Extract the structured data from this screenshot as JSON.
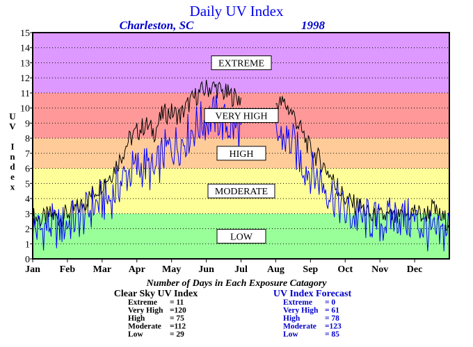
{
  "header": {
    "title": "Daily UV Index",
    "location": "Charleston, SC",
    "year": "1998"
  },
  "chart_data": {
    "type": "line",
    "title": "Daily UV Index",
    "subtitle": "Charleston, SC",
    "year": "1998",
    "ylabel": "UV Index",
    "ylim": [
      0,
      15
    ],
    "y_ticks": [
      "0",
      "1",
      "2",
      "3",
      "4",
      "5",
      "6",
      "7",
      "8",
      "9",
      "10",
      "11",
      "12",
      "13",
      "14",
      "15"
    ],
    "x_ticks": [
      "Jan",
      "Feb",
      "Mar",
      "Apr",
      "May",
      "Jun",
      "Jul",
      "Aug",
      "Sep",
      "Oct",
      "Nov",
      "Dec"
    ],
    "x_unit": "month",
    "grid": "horizontal dotted",
    "bands": [
      {
        "label": "LOW",
        "from": 0,
        "to": 3,
        "color": "#99ff99"
      },
      {
        "label": "MODERATE",
        "from": 3,
        "to": 6,
        "color": "#ffff99"
      },
      {
        "label": "HIGH",
        "from": 6,
        "to": 8,
        "color": "#ffcc99"
      },
      {
        "label": "VERY HIGH",
        "from": 8,
        "to": 11,
        "color": "#ff9999"
      },
      {
        "label": "EXTREME",
        "from": 11,
        "to": 15,
        "color": "#dd99ff"
      }
    ],
    "series": [
      {
        "key": "clear-sky",
        "color": "#000000",
        "x": [
          0,
          0.25,
          0.5,
          0.75,
          1,
          1.25,
          1.5,
          1.75,
          2,
          2.25,
          2.5,
          2.75,
          3,
          3.25,
          3.5,
          3.75,
          4,
          4.25,
          4.5,
          4.75,
          5,
          5.25,
          5.5,
          5.75,
          6,
          6.25,
          6.5,
          6.75,
          7,
          7.25,
          7.5,
          7.75,
          8,
          8.25,
          8.5,
          8.75,
          9,
          9.25,
          9.5,
          9.75,
          10,
          10.25,
          10.5,
          10.75,
          11,
          11.25,
          11.5,
          11.75,
          12
        ],
        "values": [
          2.8,
          2.6,
          2.9,
          2.7,
          3.0,
          3.3,
          3.7,
          4.4,
          5.0,
          5.6,
          6.6,
          7.8,
          8.4,
          8.9,
          8.4,
          9.6,
          9.7,
          9.5,
          10.3,
          10.9,
          11.3,
          11.4,
          11.0,
          10.8,
          10.6,
          null,
          null,
          null,
          10.3,
          10.3,
          9.6,
          8.4,
          7.2,
          6.6,
          5.8,
          4.8,
          4.0,
          3.6,
          3.4,
          2.7,
          2.8,
          2.8,
          2.6,
          2.9,
          3.2,
          2.8,
          3.4,
          2.7,
          2.5
        ]
      },
      {
        "key": "forecast",
        "color": "#0000ff",
        "x": [
          0,
          0.25,
          0.5,
          0.75,
          1,
          1.25,
          1.5,
          1.75,
          2,
          2.25,
          2.5,
          2.75,
          3,
          3.25,
          3.5,
          3.75,
          4,
          4.25,
          4.5,
          4.75,
          5,
          5.25,
          5.5,
          5.75,
          6,
          6.25,
          6.5,
          6.75,
          7,
          7.25,
          7.5,
          7.75,
          8,
          8.25,
          8.5,
          8.75,
          9,
          9.25,
          9.5,
          9.75,
          10,
          10.25,
          10.5,
          10.75,
          11,
          11.25,
          11.5,
          11.75,
          12
        ],
        "values": [
          2.0,
          1.9,
          2.3,
          2.0,
          2.4,
          2.6,
          2.9,
          3.5,
          3.8,
          4.0,
          5.0,
          5.7,
          6.0,
          6.2,
          5.5,
          7.0,
          7.4,
          7.7,
          8.3,
          8.9,
          9.2,
          9.5,
          9.0,
          8.7,
          8.5,
          null,
          null,
          null,
          8.2,
          8.0,
          7.6,
          6.4,
          5.8,
          5.3,
          4.6,
          4.0,
          3.0,
          2.8,
          2.6,
          2.6,
          2.3,
          2.6,
          2.9,
          2.6,
          2.5,
          2.1,
          1.6,
          1.4,
          2.3
        ]
      }
    ],
    "counts_title": "Number of Days in Each Exposure Catagory",
    "counts": {
      "clear_sky": {
        "header": "Clear Sky UV Index",
        "rows": [
          {
            "label": "Extreme",
            "value": "= 11"
          },
          {
            "label": "Very High",
            "value": "=120"
          },
          {
            "label": "High",
            "value": "= 75"
          },
          {
            "label": "Moderate",
            "value": "=112"
          },
          {
            "label": "Low",
            "value": "= 29"
          }
        ]
      },
      "forecast": {
        "header": "UV Index Forecast",
        "rows": [
          {
            "label": "Extreme",
            "value": "= 0"
          },
          {
            "label": "Very High",
            "value": "= 61"
          },
          {
            "label": "High",
            "value": "= 78"
          },
          {
            "label": "Moderate",
            "value": "=123"
          },
          {
            "label": "Low",
            "value": "= 85"
          }
        ]
      }
    }
  }
}
